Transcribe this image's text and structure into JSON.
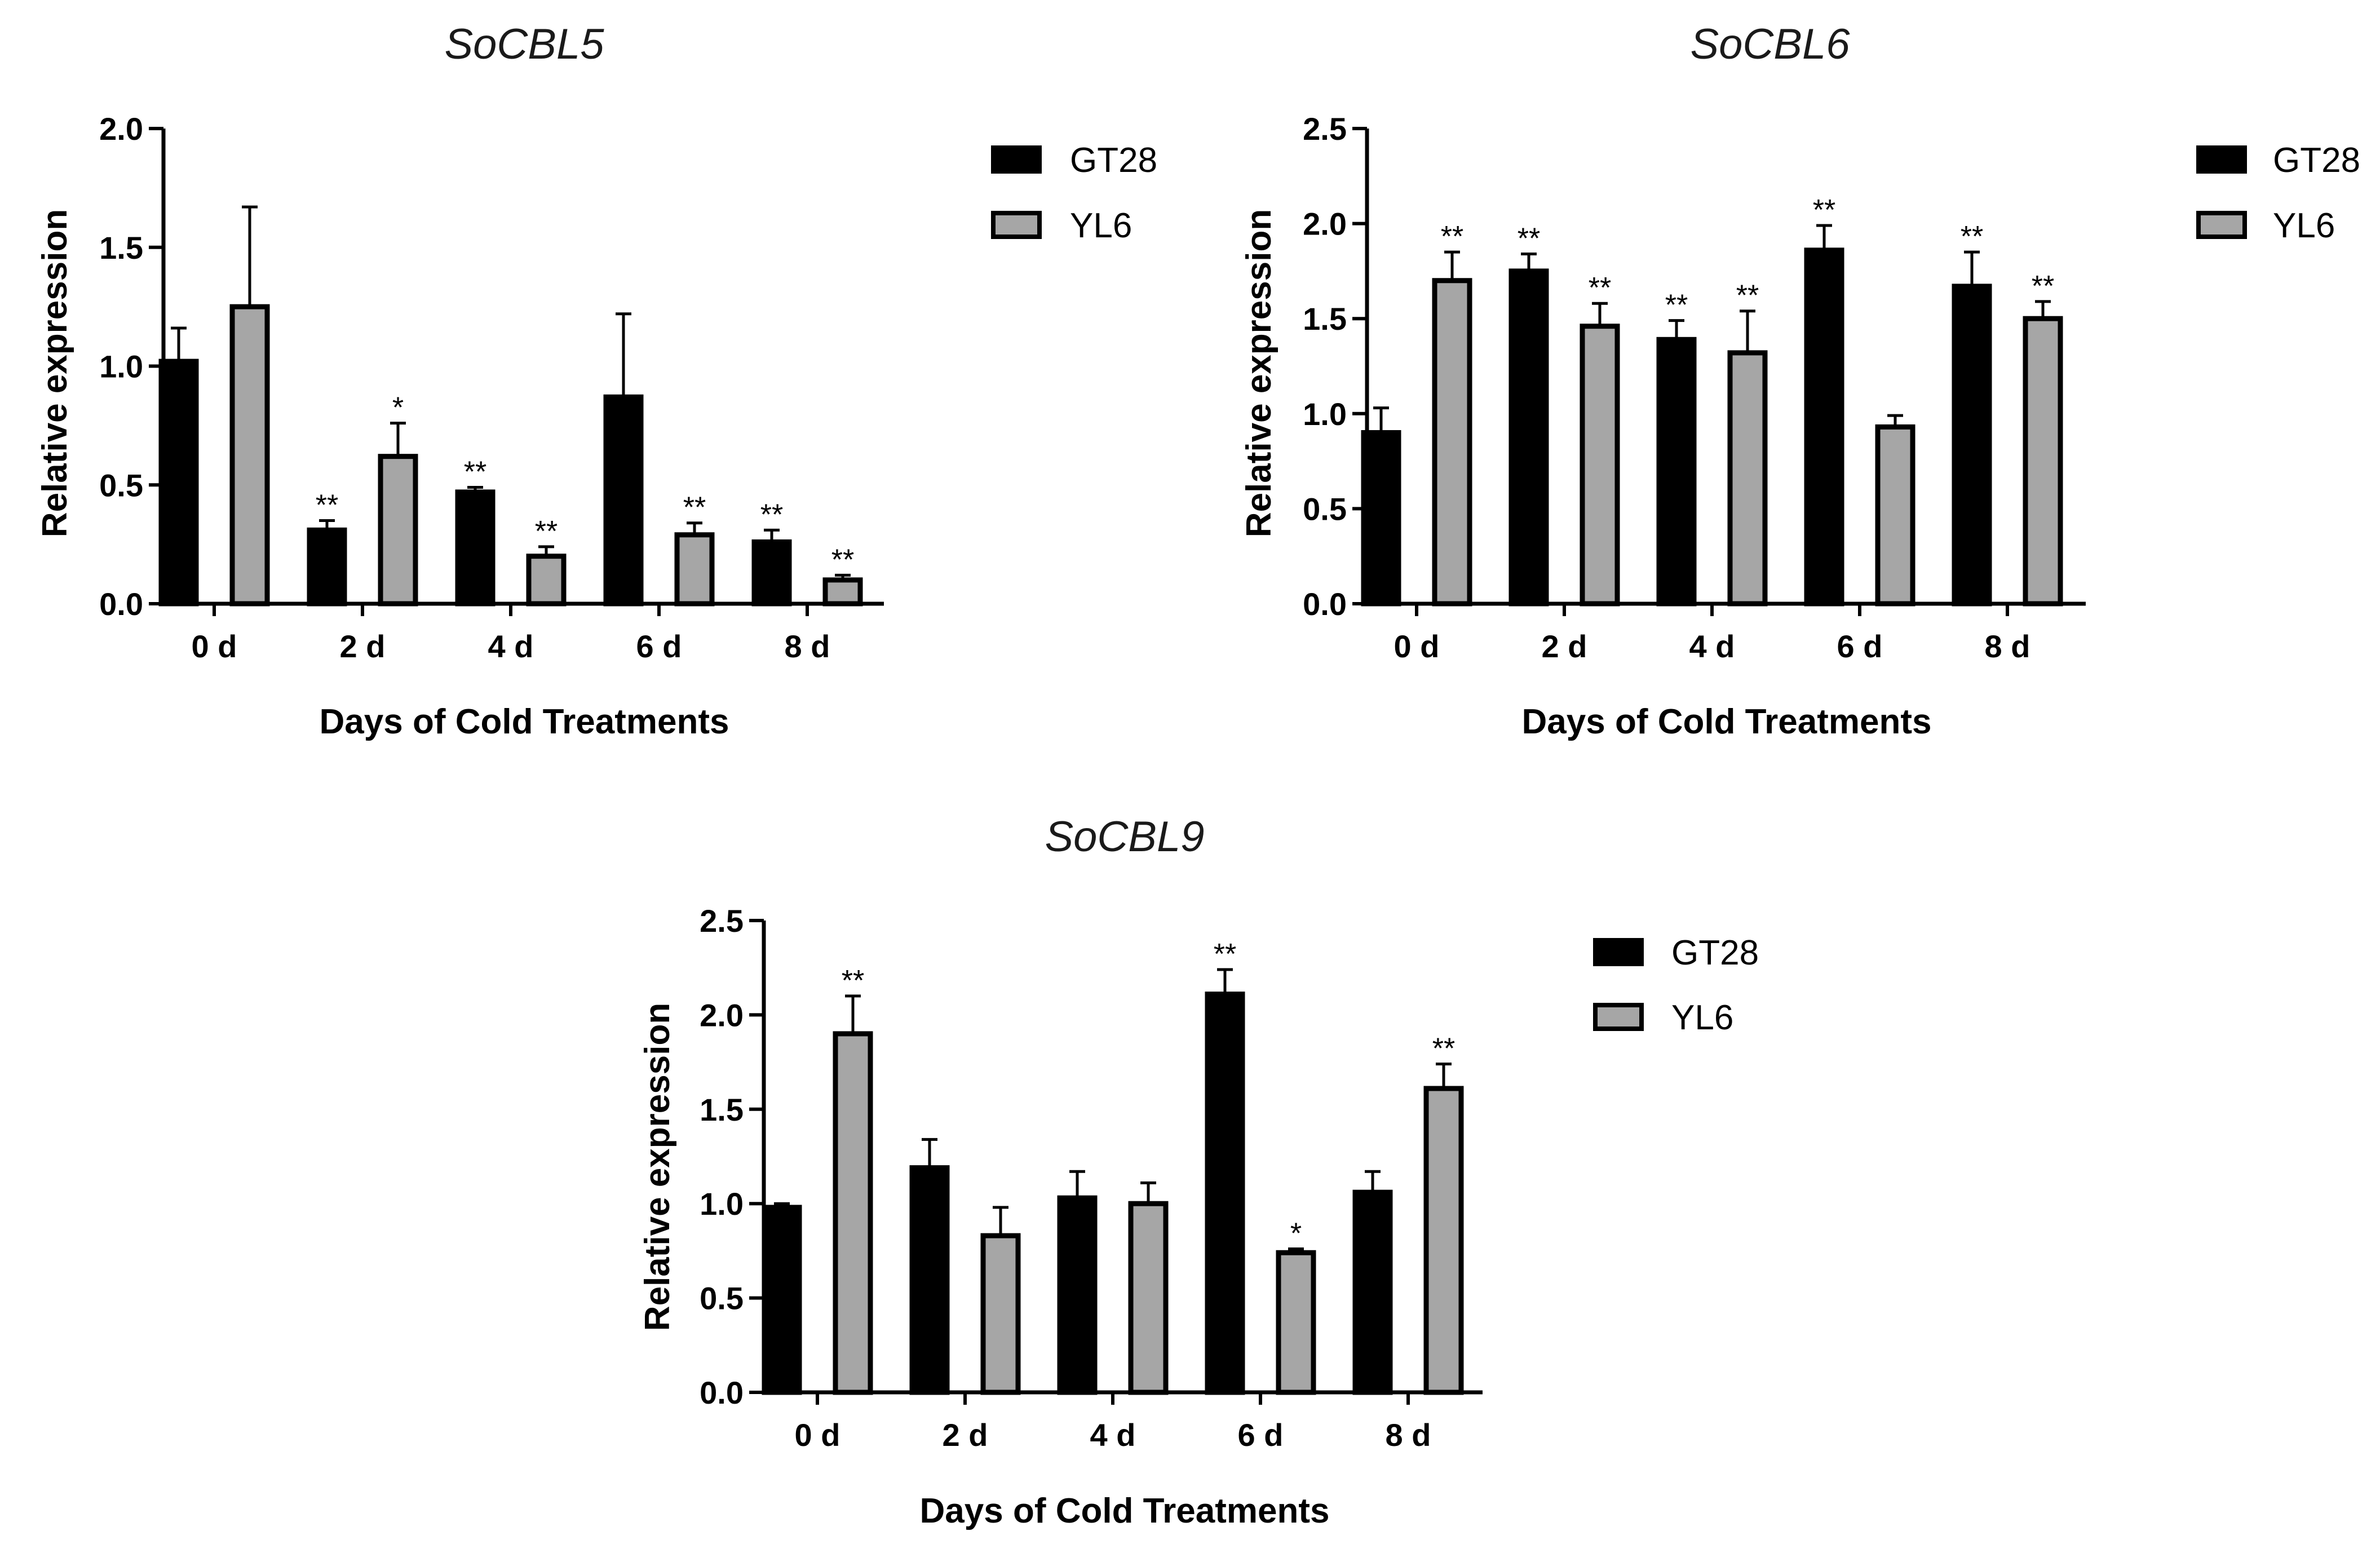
{
  "colors": {
    "gt28_fill": "#000000",
    "yl6_fill": "#a6a6a6",
    "stroke": "#000000"
  },
  "chart_data": [
    {
      "type": "bar",
      "title": "SoCBL5",
      "xlabel": "Days of Cold Treatments",
      "ylabel": "Relative expression",
      "ylim": [
        0,
        2.0
      ],
      "yticks": [
        "0.0",
        "0.5",
        "1.0",
        "1.5",
        "2.0"
      ],
      "categories": [
        "0 d",
        "2 d",
        "4 d",
        "6 d",
        "8 d"
      ],
      "legend_position": "right",
      "series": [
        {
          "name": "GT28",
          "values": [
            1.02,
            0.31,
            0.47,
            0.87,
            0.26
          ],
          "errors": [
            0.14,
            0.04,
            0.02,
            0.35,
            0.05
          ],
          "sig": [
            "",
            "**",
            "**",
            "",
            "**"
          ]
        },
        {
          "name": "YL6",
          "values": [
            1.25,
            0.62,
            0.2,
            0.29,
            0.1
          ],
          "errors": [
            0.42,
            0.14,
            0.04,
            0.05,
            0.02
          ],
          "sig": [
            "",
            "*",
            "**",
            "**",
            "**"
          ]
        }
      ]
    },
    {
      "type": "bar",
      "title": "SoCBL6",
      "xlabel": "Days of Cold Treatments",
      "ylabel": "Relative expression",
      "ylim": [
        0,
        2.5
      ],
      "yticks": [
        "0.0",
        "0.5",
        "1.0",
        "1.5",
        "2.0",
        "2.5"
      ],
      "categories": [
        "0 d",
        "2 d",
        "4 d",
        "6 d",
        "8 d"
      ],
      "legend_position": "right",
      "series": [
        {
          "name": "GT28",
          "values": [
            0.9,
            1.75,
            1.39,
            1.86,
            1.67
          ],
          "errors": [
            0.13,
            0.09,
            0.1,
            0.13,
            0.18
          ],
          "sig": [
            "",
            "**",
            "**",
            "**",
            "**"
          ]
        },
        {
          "name": "YL6",
          "values": [
            1.7,
            1.46,
            1.32,
            0.93,
            1.5
          ],
          "errors": [
            0.15,
            0.12,
            0.22,
            0.06,
            0.09
          ],
          "sig": [
            "**",
            "**",
            "**",
            "",
            "**"
          ]
        }
      ]
    },
    {
      "type": "bar",
      "title": "SoCBL9",
      "xlabel": "Days of Cold Treatments",
      "ylabel": "Relative expression",
      "ylim": [
        0,
        2.5
      ],
      "yticks": [
        "0.0",
        "0.5",
        "1.0",
        "1.5",
        "2.0",
        "2.5"
      ],
      "categories": [
        "0 d",
        "2 d",
        "4 d",
        "6 d",
        "8 d"
      ],
      "legend_position": "right",
      "series": [
        {
          "name": "GT28",
          "values": [
            0.98,
            1.19,
            1.03,
            2.11,
            1.06
          ],
          "errors": [
            0.02,
            0.15,
            0.14,
            0.13,
            0.11
          ],
          "sig": [
            "",
            "",
            "",
            "**",
            ""
          ]
        },
        {
          "name": "YL6",
          "values": [
            1.9,
            0.83,
            1.0,
            0.74,
            1.61
          ],
          "errors": [
            0.2,
            0.15,
            0.11,
            0.02,
            0.13
          ],
          "sig": [
            "**",
            "",
            "",
            "*",
            "**"
          ]
        }
      ]
    }
  ]
}
